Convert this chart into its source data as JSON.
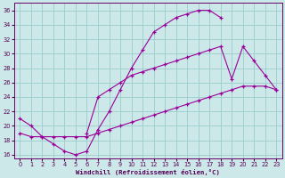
{
  "xlabel": "Windchill (Refroidissement éolien,°C)",
  "bg_color": "#cce8e8",
  "line_color": "#990099",
  "grid_color": "#99cccc",
  "xlim": [
    -0.5,
    23.5
  ],
  "ylim": [
    15.5,
    37.0
  ],
  "xticks": [
    0,
    1,
    2,
    3,
    4,
    5,
    6,
    7,
    8,
    9,
    10,
    11,
    12,
    13,
    14,
    15,
    16,
    17,
    18,
    19,
    20,
    21,
    22,
    23
  ],
  "yticks": [
    16,
    18,
    20,
    22,
    24,
    26,
    28,
    30,
    32,
    34,
    36
  ],
  "line1_x": [
    0,
    1,
    2,
    3,
    4,
    5,
    6,
    7,
    8,
    9,
    10,
    11,
    12,
    13,
    14,
    15,
    16,
    17,
    18
  ],
  "line1_y": [
    21,
    20,
    18.5,
    17.5,
    16.5,
    16,
    16.5,
    19.5,
    22,
    25,
    28,
    30.5,
    33,
    34,
    35,
    35.5,
    36,
    36,
    35
  ],
  "line2_x": [
    0,
    1,
    2,
    3,
    4,
    5,
    6,
    7,
    8,
    9,
    10,
    11,
    12,
    13,
    14,
    15,
    16,
    17,
    18,
    19,
    20,
    21,
    22,
    23
  ],
  "line2_y": [
    19,
    18.5,
    18.5,
    18.5,
    18.5,
    18.5,
    18.5,
    19,
    19.5,
    20,
    20.5,
    21,
    21.5,
    22,
    22.5,
    23,
    23.5,
    24,
    24.5,
    25,
    25.5,
    25.5,
    25.5,
    25
  ],
  "line3_x": [
    6,
    7,
    8,
    9,
    10,
    11,
    12,
    13,
    14,
    15,
    16,
    17,
    18,
    19,
    20,
    21,
    22,
    23
  ],
  "line3_y": [
    19,
    24,
    25,
    26,
    27,
    27.5,
    28,
    28.5,
    29,
    29.5,
    30,
    30.5,
    31,
    26.5,
    31,
    29,
    27,
    25
  ]
}
